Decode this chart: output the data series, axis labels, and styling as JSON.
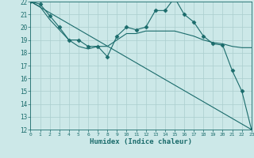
{
  "xlabel": "Humidex (Indice chaleur)",
  "bg_color": "#cce8e8",
  "grid_color": "#aacece",
  "line_color": "#1a6b6b",
  "xmin": 0,
  "xmax": 23,
  "ymin": 12,
  "ymax": 22,
  "series": [
    {
      "x": [
        0,
        1,
        2,
        3,
        4,
        5,
        6,
        7,
        8,
        9,
        10,
        11,
        12,
        13,
        14,
        15,
        16,
        17,
        18,
        19,
        20,
        21,
        22,
        23
      ],
      "y": [
        22.0,
        21.8,
        20.9,
        20.0,
        19.0,
        19.0,
        18.5,
        18.5,
        17.7,
        19.3,
        20.0,
        19.8,
        20.0,
        21.3,
        21.3,
        22.3,
        21.0,
        20.4,
        19.3,
        18.7,
        18.6,
        16.6,
        15.0,
        12.0
      ],
      "marker": "D"
    },
    {
      "x": [
        0,
        1,
        2,
        3,
        4,
        5,
        6,
        7,
        8,
        9,
        10,
        11,
        12,
        13,
        14,
        15,
        16,
        17,
        18,
        19,
        20,
        21,
        22,
        23
      ],
      "y": [
        22.0,
        21.6,
        20.6,
        19.8,
        19.0,
        18.5,
        18.3,
        18.5,
        18.5,
        19.0,
        19.5,
        19.5,
        19.7,
        19.7,
        19.7,
        19.7,
        19.5,
        19.3,
        19.0,
        18.8,
        18.7,
        18.5,
        18.4,
        18.4
      ],
      "marker": null
    },
    {
      "x": [
        0,
        23
      ],
      "y": [
        22.0,
        12.0
      ],
      "marker": null
    }
  ]
}
